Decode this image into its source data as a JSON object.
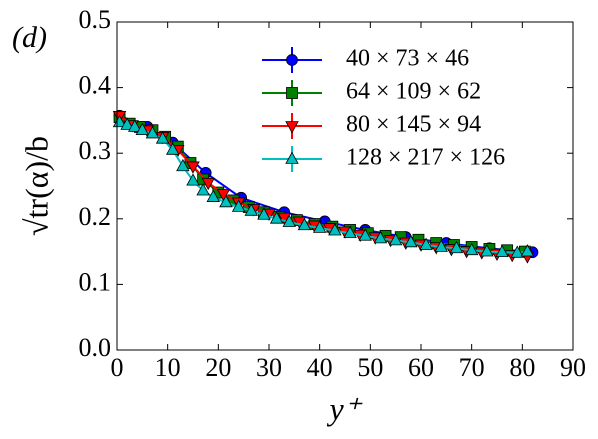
{
  "chart_data": {
    "type": "line",
    "annotation": "(d)",
    "x_label": "y⁺",
    "y_label": "√tr(α)/b",
    "xlim": [
      0,
      90
    ],
    "xticks": [
      0,
      10,
      20,
      30,
      40,
      50,
      60,
      70,
      80,
      90
    ],
    "ylim": [
      0,
      0.5
    ],
    "yticks": [
      {
        "value": 0,
        "label": "0.0"
      },
      0.1,
      0.2,
      0.3,
      0.4,
      0.5
    ],
    "legend": "upper right",
    "series": [
      {
        "name": "40 × 73 × 46",
        "color": "#0000ff",
        "marker": "circle",
        "x": [
          0.5,
          6,
          11,
          17.5,
          24.5,
          33,
          41,
          49,
          57,
          65,
          73.5,
          82
        ],
        "values": [
          0.357,
          0.34,
          0.316,
          0.27,
          0.232,
          0.21,
          0.196,
          0.183,
          0.172,
          0.163,
          0.155,
          0.149
        ]
      },
      {
        "name": "64 × 109 × 62",
        "color": "#008000",
        "marker": "square",
        "x": [
          0.5,
          2.5,
          4.5,
          7,
          9.5,
          12,
          14.5,
          17,
          20,
          23,
          26,
          29,
          32,
          35.5,
          39,
          42.5,
          46,
          49.5,
          53,
          56,
          59.5,
          63,
          66.5,
          70,
          73.5,
          77,
          80.5
        ],
        "values": [
          0.355,
          0.345,
          0.34,
          0.335,
          0.325,
          0.31,
          0.285,
          0.26,
          0.24,
          0.228,
          0.218,
          0.21,
          0.203,
          0.198,
          0.192,
          0.188,
          0.183,
          0.178,
          0.174,
          0.172,
          0.168,
          0.163,
          0.16,
          0.157,
          0.154,
          0.152,
          0.15
        ]
      },
      {
        "name": "80 × 145 × 94",
        "color": "#ff0000",
        "marker": "triangle-down",
        "x": [
          0.5,
          3,
          6,
          9,
          12,
          15,
          18,
          21,
          24,
          27,
          30,
          33,
          36,
          39,
          42,
          45,
          48,
          51,
          54,
          57,
          60,
          63,
          66,
          69,
          72,
          75,
          78,
          81
        ],
        "values": [
          0.357,
          0.343,
          0.335,
          0.325,
          0.305,
          0.28,
          0.255,
          0.238,
          0.225,
          0.215,
          0.208,
          0.202,
          0.196,
          0.19,
          0.186,
          0.181,
          0.176,
          0.172,
          0.168,
          0.164,
          0.161,
          0.157,
          0.154,
          0.151,
          0.149,
          0.147,
          0.145,
          0.143
        ]
      },
      {
        "name": "128 × 217 × 126",
        "color": "#00bfbf",
        "marker": "triangle-up",
        "x": [
          0.5,
          2,
          3.5,
          5,
          7,
          9,
          11,
          13,
          15,
          17,
          19,
          21.5,
          24,
          26.5,
          29,
          31.5,
          34,
          37,
          40,
          43,
          46,
          49,
          52,
          55,
          58,
          61,
          64,
          67,
          70,
          73,
          76,
          79,
          81
        ],
        "values": [
          0.347,
          0.343,
          0.34,
          0.335,
          0.33,
          0.322,
          0.305,
          0.28,
          0.258,
          0.243,
          0.233,
          0.225,
          0.218,
          0.212,
          0.206,
          0.2,
          0.195,
          0.19,
          0.186,
          0.182,
          0.178,
          0.174,
          0.17,
          0.167,
          0.164,
          0.16,
          0.157,
          0.155,
          0.152,
          0.15,
          0.149,
          0.148,
          0.15
        ]
      }
    ]
  }
}
